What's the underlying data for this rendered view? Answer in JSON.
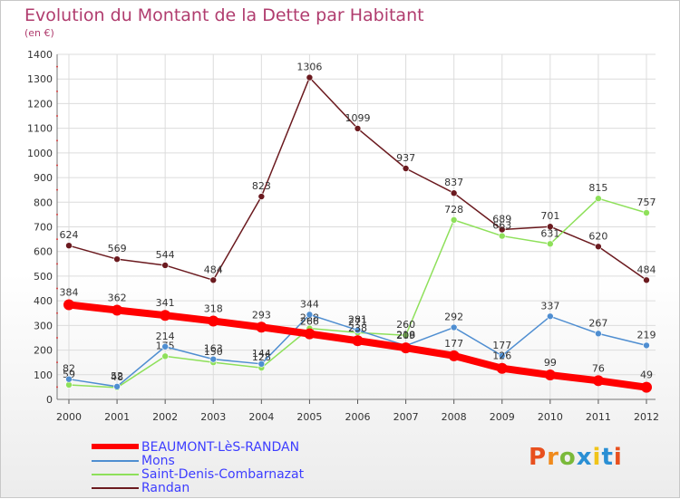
{
  "chart_data": {
    "type": "line",
    "title": "Evolution du Montant de la Dette par Habitant",
    "subtitle": "(en €)",
    "x": [
      "2000",
      "2001",
      "2002",
      "2003",
      "2004",
      "2005",
      "2006",
      "2007",
      "2008",
      "2009",
      "2010",
      "2011",
      "2012"
    ],
    "ylim": [
      0,
      1400
    ],
    "yticks": [
      0,
      100,
      200,
      300,
      400,
      500,
      600,
      700,
      800,
      900,
      1000,
      1100,
      1200,
      1300,
      1400
    ],
    "grid": true,
    "legend_position": "bottom-left",
    "series": [
      {
        "name": "Randan",
        "color": "#6b1a1f",
        "values": [
          624,
          569,
          544,
          484,
          823,
          1306,
          1099,
          937,
          837,
          689,
          701,
          620,
          484
        ]
      },
      {
        "name": "Saint-Denis-Combarnazat",
        "color": "#8ee05a",
        "values": [
          59,
          48,
          175,
          150,
          128,
          288,
          271,
          260,
          728,
          663,
          631,
          815,
          757
        ]
      },
      {
        "name": "Mons",
        "color": "#4f8ed1",
        "values": [
          82,
          52,
          214,
          163,
          144,
          344,
          281,
          218,
          292,
          177,
          337,
          267,
          219
        ]
      },
      {
        "name": "BEAUMONT-LèS-RANDAN",
        "color": "#ff0000",
        "values": [
          384,
          362,
          341,
          318,
          293,
          266,
          238,
          209,
          177,
          126,
          99,
          76,
          49
        ]
      }
    ]
  },
  "legend": [
    {
      "name": "BEAUMONT-LèS-RANDAN",
      "color": "#ff0000",
      "thick": true
    },
    {
      "name": "Mons",
      "color": "#4f8ed1",
      "thick": false
    },
    {
      "name": "Saint-Denis-Combarnazat",
      "color": "#8ee05a",
      "thick": false
    },
    {
      "name": "Randan",
      "color": "#6b1a1f",
      "thick": false
    }
  ],
  "logo": {
    "text": "Proxiti",
    "colors": [
      "#e8501e",
      "#f08a1c",
      "#7ab93a",
      "#2a8fd4",
      "#f0c419",
      "#2a8fd4",
      "#e8501e"
    ]
  }
}
